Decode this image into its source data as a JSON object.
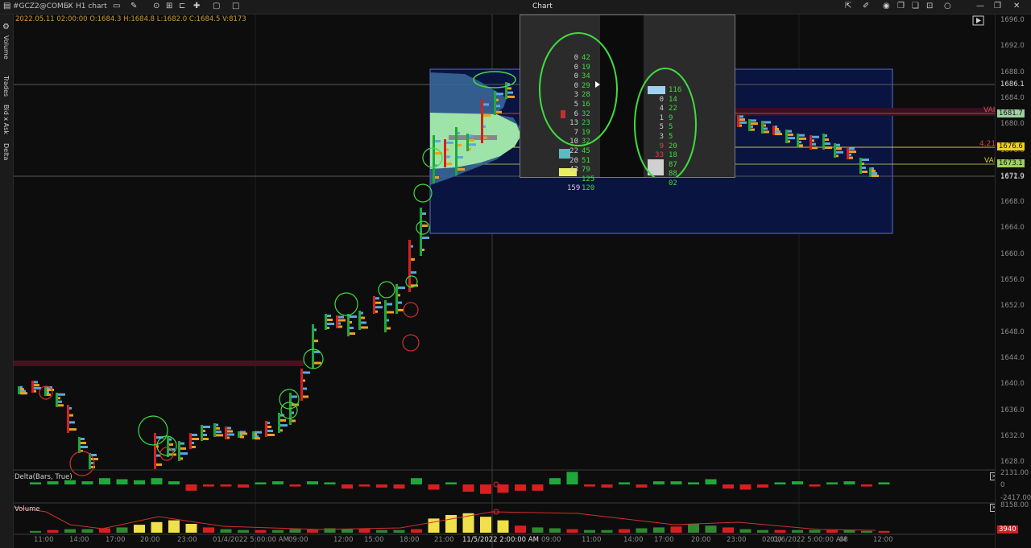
{
  "toolbar": {
    "symbol": "#GCZ2@COMEX",
    "chart_type": "H1 chart",
    "title": "Chart"
  },
  "info_line": "2022.05.11 02:00:00 O:1684.3 H:1684.8 L:1682.0 C:1684.5 V:8173",
  "side_tabs": [
    "Volume",
    "Trades",
    "Bid x Ask",
    "Delta"
  ],
  "price_axis": {
    "ticks": [
      "1696.0",
      "1692.0",
      "1688.0",
      "1684.0",
      "1680.0",
      "1676.0",
      "1672.0",
      "1668.0",
      "1664.0",
      "1660.0",
      "1656.0",
      "1652.0",
      "1648.0",
      "1644.0",
      "1640.0",
      "1636.0",
      "1632.0",
      "1628.0"
    ],
    "price_1686": "1686.1",
    "price_1671": "1671.9",
    "vah_price": "1681.7",
    "poc_price": "1676.6",
    "val_price": "1673.1"
  },
  "profile_labels": {
    "vah": "VAH",
    "val": "VAL",
    "poc_volume": "4.21K"
  },
  "indicators": {
    "delta_label": "Delta(Bars, True)",
    "delta_axis": [
      "2131.00",
      "0",
      "-2417.00"
    ],
    "volume_label": "Volume",
    "volume_axis_top": "8158.00",
    "volume_last": "3940"
  },
  "time_axis": [
    "11:00",
    "14:00",
    "17:00",
    "20:00",
    "23:00",
    "01/4/2022 5:00:00 AM",
    "09:00",
    "12:00",
    "15:00",
    "18:00",
    "21:00",
    "11/5/2022 2:00:00 AM",
    "09:00",
    "11:00",
    "14:00",
    "17:00",
    "20:00",
    "23:00",
    "02:00",
    "01/6/2022 5:00:00 AM",
    "08",
    "12:00"
  ],
  "popup": {
    "left_rows": [
      {
        "a": "0",
        "b": "42"
      },
      {
        "a": "0",
        "b": "19"
      },
      {
        "a": "0",
        "b": "34"
      },
      {
        "a": "0",
        "b": "29"
      },
      {
        "a": "3",
        "b": "28"
      },
      {
        "a": "5",
        "b": "16"
      },
      {
        "a": "6",
        "b": "32"
      },
      {
        "a": "13",
        "b": "23"
      },
      {
        "a": "7",
        "b": "19"
      },
      {
        "a": "10",
        "b": "32"
      },
      {
        "a": "22",
        "b": "45"
      },
      {
        "a": "20",
        "b": "51"
      },
      {
        "a": "43",
        "b": "79"
      },
      {
        "a": "",
        "b": "125"
      },
      {
        "a": "159",
        "b": "120"
      }
    ],
    "right_rows": [
      {
        "a": "",
        "b": "116"
      },
      {
        "a": "0",
        "b": "14"
      },
      {
        "a": "4",
        "b": "22"
      },
      {
        "a": "1",
        "b": "9"
      },
      {
        "a": "5",
        "b": "5"
      },
      {
        "a": "3",
        "b": "5"
      },
      {
        "a": "9",
        "b": "20"
      },
      {
        "a": "33",
        "b": "18"
      },
      {
        "a": "",
        "b": "87"
      },
      {
        "a": "38",
        "b": "88"
      },
      {
        "a": "",
        "b": "02"
      }
    ]
  },
  "colors": {
    "bull": "#1fa83a",
    "bear": "#d81f1f",
    "highlight": "#f0e04a",
    "profile": "#7fd6a0",
    "box": "#0a1440"
  }
}
